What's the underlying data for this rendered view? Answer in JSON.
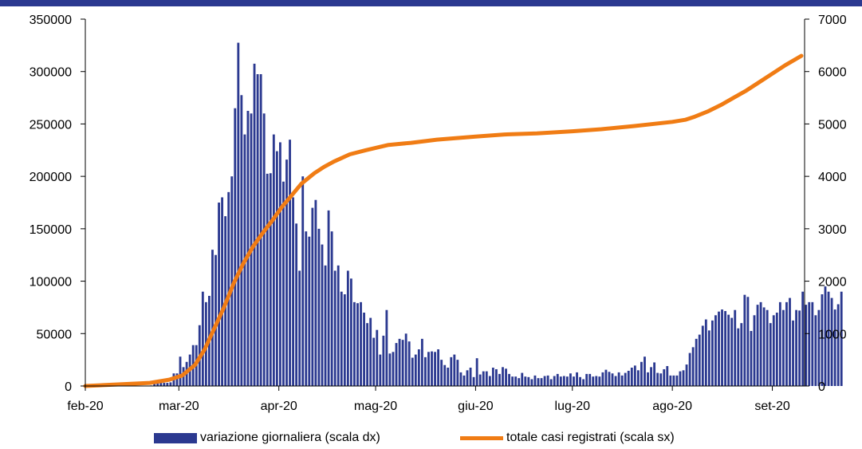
{
  "colors": {
    "band": "#2b3990",
    "bars": "#2b3990",
    "line": "#f07c14",
    "axis": "#000000"
  },
  "chart_data": {
    "type": "bar",
    "title": "",
    "x_tick_labels": [
      "feb-20",
      "mar-20",
      "apr-20",
      "mag-20",
      "giu-20",
      "lug-20",
      "ago-20",
      "set-20"
    ],
    "left_axis": {
      "min": 0,
      "max": 350000,
      "ticks": [
        0,
        50000,
        100000,
        150000,
        200000,
        250000,
        300000,
        350000
      ]
    },
    "right_axis": {
      "min": 0,
      "max": 7000,
      "ticks": [
        0,
        1000,
        2000,
        3000,
        4000,
        5000,
        6000,
        7000
      ]
    },
    "series": [
      {
        "name": "variazione giornaliera (scala dx)",
        "type": "bar",
        "axis": "right",
        "start": "2020-02-01",
        "values": [
          0,
          0,
          0,
          0,
          0,
          0,
          0,
          0,
          0,
          0,
          0,
          0,
          0,
          0,
          0,
          0,
          0,
          0,
          0,
          0,
          10,
          40,
          50,
          60,
          60,
          60,
          70,
          240,
          240,
          560,
          360,
          460,
          600,
          780,
          780,
          1160,
          1800,
          1600,
          1720,
          2600,
          2500,
          3500,
          3600,
          3240,
          3700,
          4000,
          5300,
          6550,
          5550,
          4800,
          5250,
          5200,
          6150,
          5950,
          5950,
          5200,
          4050,
          4060,
          4800,
          4480,
          4650,
          3900,
          4320,
          4700,
          3600,
          3100,
          2200,
          4000,
          2950,
          2850,
          3400,
          3550,
          3000,
          2700,
          2300,
          3350,
          2950,
          2200,
          2300,
          1800,
          1750,
          2200,
          2050,
          1600,
          1580,
          1600,
          1400,
          1200,
          1300,
          920,
          1070,
          600,
          960,
          1450,
          620,
          650,
          820,
          900,
          880,
          1000,
          850,
          540,
          600,
          700,
          900,
          550,
          650,
          660,
          650,
          700,
          500,
          400,
          350,
          550,
          600,
          500,
          260,
          200,
          300,
          350,
          170,
          530,
          220,
          280,
          280,
          190,
          350,
          320,
          230,
          360,
          330,
          230,
          180,
          180,
          150,
          250,
          180,
          170,
          130,
          200,
          150,
          150,
          190,
          200,
          130,
          190,
          230,
          180,
          190,
          180,
          240,
          180,
          260,
          170,
          130,
          230,
          230,
          180,
          190,
          180,
          260,
          310,
          270,
          240,
          190,
          260,
          200,
          250,
          290,
          350,
          390,
          300,
          460,
          560,
          260,
          360,
          450,
          250,
          240,
          320,
          380,
          200,
          200,
          200,
          280,
          300,
          410,
          630,
          740,
          900,
          980,
          1150,
          1270,
          1060,
          1250,
          1350,
          1420,
          1460,
          1430,
          1360,
          1300,
          1450,
          1100,
          1200,
          1740,
          1700,
          1050,
          1350,
          1550,
          1600,
          1500,
          1450,
          1200,
          1350,
          1400,
          1600,
          1450,
          1600,
          1680,
          1250,
          1450,
          1440,
          1800,
          1550,
          1600,
          1600,
          1350,
          1450,
          1750,
          1900,
          1800,
          1680,
          1460,
          1560,
          1800
        ]
      },
      {
        "name": "totale casi registrati (scala sx)",
        "type": "line",
        "axis": "left",
        "points": [
          [
            "2020-02-01",
            0
          ],
          [
            "2020-02-21",
            3000
          ],
          [
            "2020-02-27",
            6000
          ],
          [
            "2020-03-02",
            10000
          ],
          [
            "2020-03-06",
            20000
          ],
          [
            "2020-03-09",
            35000
          ],
          [
            "2020-03-12",
            55000
          ],
          [
            "2020-03-15",
            75000
          ],
          [
            "2020-03-18",
            98000
          ],
          [
            "2020-03-21",
            117000
          ],
          [
            "2020-03-24",
            133000
          ],
          [
            "2020-03-27",
            146000
          ],
          [
            "2020-03-30",
            158000
          ],
          [
            "2020-04-02",
            171000
          ],
          [
            "2020-04-05",
            182000
          ],
          [
            "2020-04-08",
            193000
          ],
          [
            "2020-04-12",
            203000
          ],
          [
            "2020-04-15",
            209000
          ],
          [
            "2020-04-18",
            214000
          ],
          [
            "2020-04-23",
            221000
          ],
          [
            "2020-04-28",
            225000
          ],
          [
            "2020-05-05",
            230000
          ],
          [
            "2020-05-12",
            232000
          ],
          [
            "2020-05-20",
            235000
          ],
          [
            "2020-06-01",
            238000
          ],
          [
            "2020-06-10",
            240000
          ],
          [
            "2020-06-20",
            241000
          ],
          [
            "2020-07-01",
            243000
          ],
          [
            "2020-07-10",
            245000
          ],
          [
            "2020-07-20",
            248000
          ],
          [
            "2020-08-01",
            252000
          ],
          [
            "2020-08-05",
            254000
          ],
          [
            "2020-08-08",
            257000
          ],
          [
            "2020-08-12",
            262000
          ],
          [
            "2020-08-16",
            268000
          ],
          [
            "2020-08-20",
            275000
          ],
          [
            "2020-08-24",
            282000
          ],
          [
            "2020-08-28",
            290000
          ],
          [
            "2020-09-01",
            298000
          ],
          [
            "2020-09-05",
            306000
          ],
          [
            "2020-09-10",
            315000
          ]
        ]
      }
    ],
    "grid": false,
    "legend": "bottom"
  }
}
